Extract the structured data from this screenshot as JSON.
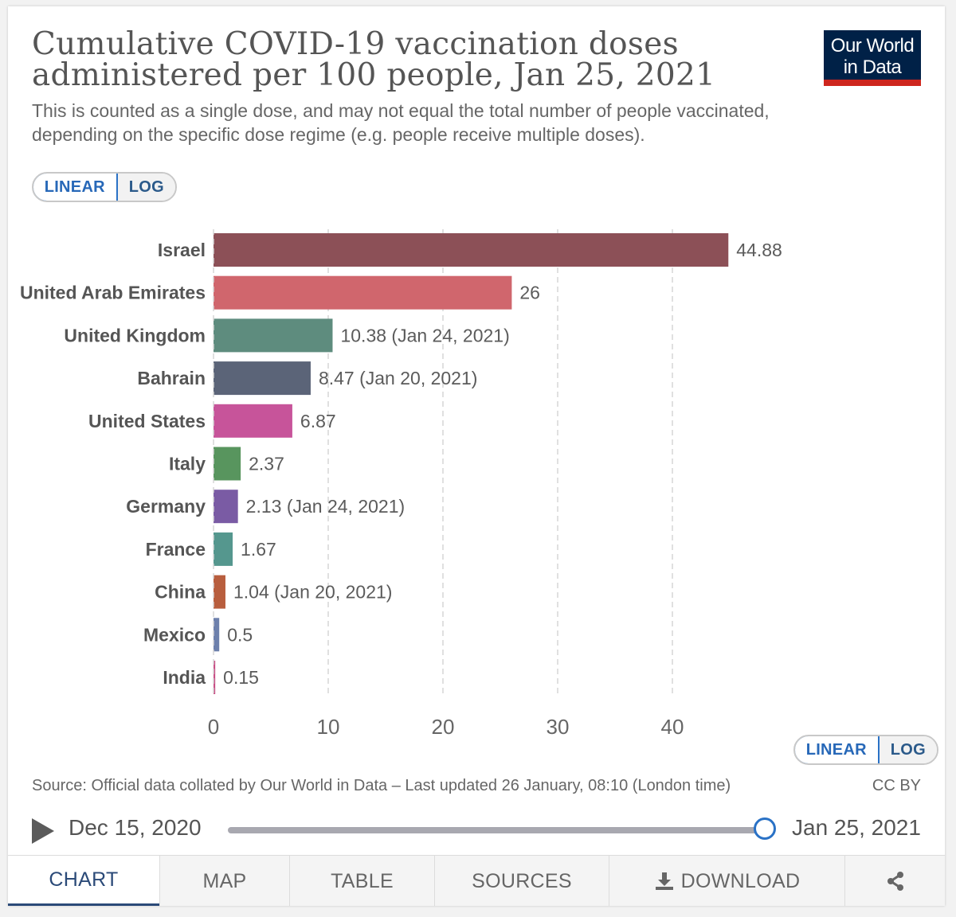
{
  "header": {
    "title": "Cumulative COVID-19 vaccination doses administered per 100 people, Jan 25, 2021",
    "subtitle": "This is counted as a single dose, and may not equal the total number of people vaccinated, depending on the specific dose regime (e.g. people receive multiple doses).",
    "logo_line1": "Our World",
    "logo_line2": "in Data"
  },
  "scale_toggle": {
    "linear": "LINEAR",
    "log": "LOG"
  },
  "chart_data": {
    "type": "bar",
    "orientation": "horizontal",
    "title": "Cumulative COVID-19 vaccination doses administered per 100 people, Jan 25, 2021",
    "xlim": [
      0,
      45
    ],
    "xticks": [
      0,
      10,
      20,
      30,
      40
    ],
    "grid": true,
    "bars": [
      {
        "category": "Israel",
        "value": 44.88,
        "label": "44.88",
        "color": "#8c5057"
      },
      {
        "category": "United Arab Emirates",
        "value": 26,
        "label": "26",
        "color": "#d0666d"
      },
      {
        "category": "United Kingdom",
        "value": 10.38,
        "label": "10.38 (Jan 24, 2021)",
        "color": "#5e8c7e"
      },
      {
        "category": "Bahrain",
        "value": 8.47,
        "label": "8.47 (Jan 20, 2021)",
        "color": "#5b6478"
      },
      {
        "category": "United States",
        "value": 6.87,
        "label": "6.87",
        "color": "#c7549a"
      },
      {
        "category": "Italy",
        "value": 2.37,
        "label": "2.37",
        "color": "#58955e"
      },
      {
        "category": "Germany",
        "value": 2.13,
        "label": "2.13 (Jan 24, 2021)",
        "color": "#7a5ba4"
      },
      {
        "category": "France",
        "value": 1.67,
        "label": "1.67",
        "color": "#55978e"
      },
      {
        "category": "China",
        "value": 1.04,
        "label": "1.04 (Jan 20, 2021)",
        "color": "#b85e3e"
      },
      {
        "category": "Mexico",
        "value": 0.5,
        "label": "0.5",
        "color": "#6d80ac"
      },
      {
        "category": "India",
        "value": 0.15,
        "label": "0.15",
        "color": "#c84f85"
      }
    ]
  },
  "footer": {
    "source": "Source: Official data collated by Our World in Data – Last updated 26 January, 08:10 (London time)",
    "license": "CC BY"
  },
  "timeline": {
    "start": "Dec 15, 2020",
    "end": "Jan 25, 2021",
    "position": 1.0
  },
  "tabs": [
    "CHART",
    "MAP",
    "TABLE",
    "SOURCES",
    "DOWNLOAD"
  ],
  "icons": {
    "play": "play-icon",
    "download": "download-icon",
    "share": "share-icon"
  }
}
